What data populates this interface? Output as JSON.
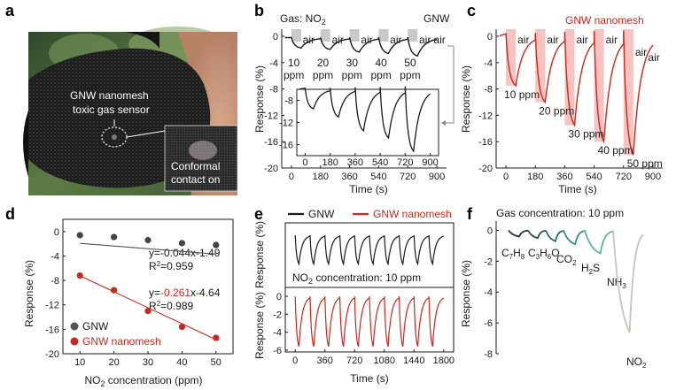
{
  "panels": {
    "a": {
      "label": "a",
      "sensor_line1": "GNW nanomesh",
      "sensor_line2": "toxic gas sensor",
      "inset_line1": "Conformal",
      "inset_line2": "contact on"
    },
    "b": {
      "label": "b"
    },
    "c": {
      "label": "c"
    },
    "d": {
      "label": "d"
    },
    "e": {
      "label": "e"
    },
    "f": {
      "label": "f"
    }
  },
  "colors": {
    "gnw": "#1a1a1a",
    "nanomesh": "#c8281e",
    "shade_gray": "#c9c9c9",
    "shade_pink": "#f6c3c0"
  },
  "chart_data": [
    {
      "id": "b",
      "type": "line",
      "title_left": "Gas: NO",
      "title_left_sub": "2",
      "title_right": "GNW",
      "xlabel": "Time (s)",
      "ylabel": "Response (%)",
      "xlim": [
        -60,
        960
      ],
      "ylim": [
        -20,
        0
      ],
      "xticks": [
        0,
        180,
        360,
        540,
        720,
        900
      ],
      "yticks": [
        0,
        -4,
        -8,
        -12,
        -16,
        -20
      ],
      "exposures": [
        [
          0,
          60
        ],
        [
          180,
          240
        ],
        [
          360,
          420
        ],
        [
          540,
          600
        ],
        [
          720,
          780
        ]
      ],
      "annotations": [
        {
          "label": "air",
          "x": 70
        },
        {
          "label": "10",
          "sub": "ppm",
          "x": 15
        },
        {
          "label": "air",
          "x": 250
        },
        {
          "label": "20",
          "sub": "ppm",
          "x": 195
        },
        {
          "label": "air",
          "x": 430
        },
        {
          "label": "30",
          "sub": "ppm",
          "x": 375
        },
        {
          "label": "air",
          "x": 610
        },
        {
          "label": "40",
          "sub": "ppm",
          "x": 555
        },
        {
          "label": "air",
          "x": 790
        },
        {
          "label": "50",
          "sub": "ppm",
          "x": 735
        },
        {
          "label": "air",
          "x": 880
        }
      ],
      "inset": {
        "xlim": [
          -60,
          960
        ],
        "ylim": [
          -18,
          -6
        ],
        "xticks": [
          0,
          180,
          360,
          540,
          720,
          900
        ],
        "yticks": [
          -8,
          -12,
          -16
        ],
        "drops": [
          -9.5,
          -11.0,
          -13.5,
          -14.8,
          -17.2
        ]
      }
    },
    {
      "id": "c",
      "type": "line",
      "title": "GNW nanomesh",
      "xlabel": "Time (s)",
      "ylabel": "Response (%)",
      "xlim": [
        -60,
        960
      ],
      "ylim": [
        -20,
        0
      ],
      "xticks": [
        0,
        180,
        360,
        540,
        720,
        900
      ],
      "yticks": [
        0,
        -4,
        -8,
        -12,
        -16,
        -20
      ],
      "exposures": [
        [
          0,
          60
        ],
        [
          180,
          240
        ],
        [
          360,
          420
        ],
        [
          540,
          600
        ],
        [
          720,
          780
        ]
      ],
      "drops": [
        -7.5,
        -10.0,
        -13.5,
        -16.0,
        -18.0
      ],
      "gas_labels": [
        "10 ppm",
        "20 ppm",
        "30 ppm",
        "40 ppm",
        "50 ppm"
      ],
      "air_label": "air"
    },
    {
      "id": "d",
      "type": "scatter",
      "xlabel": "NO",
      "xlabel_sub": "2",
      "xlabel_rest": " concentration (ppm)",
      "ylabel": "Response (%)",
      "xlim": [
        5,
        55
      ],
      "ylim": [
        -20,
        2
      ],
      "xticks": [
        10,
        20,
        30,
        40,
        50
      ],
      "yticks": [
        0,
        -4,
        -8,
        -12,
        -16,
        -20
      ],
      "series": [
        {
          "name": "GNW",
          "x": [
            10,
            20,
            30,
            40,
            50
          ],
          "y": [
            -0.6,
            -0.9,
            -1.4,
            -1.9,
            -2.2
          ],
          "err": [
            0.5,
            0.4,
            0.3,
            0.2,
            0.2
          ],
          "fit": {
            "slope": -0.044,
            "intercept": -1.49
          }
        },
        {
          "name": "GNW nanomesh",
          "x": [
            10,
            20,
            30,
            40,
            50
          ],
          "y": [
            -7.2,
            -9.6,
            -13.0,
            -15.6,
            -17.4
          ],
          "err": [
            0.2,
            0.2,
            0.3,
            0.4,
            0.4
          ],
          "fit": {
            "slope": -0.261,
            "intercept": -4.64
          }
        }
      ],
      "eq1": "y=-0.044x-1.49",
      "r2_1_prefix": "R",
      "r2_1_sup": "2",
      "r2_1_rest": "=0.959",
      "eq2_a": "y=",
      "eq2_b": "-0.261",
      "eq2_c": "x-4.64",
      "r2_2_prefix": "R",
      "r2_2_sup": "2",
      "r2_2_rest": "=0.989"
    },
    {
      "id": "e",
      "type": "line",
      "legend": [
        "GNW",
        "GNW nanomesh"
      ],
      "annotation_a": "NO",
      "annotation_sub": "2",
      "annotation_b": " concentration: 10 ppm",
      "xlabel": "Time (s)",
      "ylabel": "Response (%)",
      "xlim": [
        -120,
        1920
      ],
      "xticks": [
        0,
        360,
        720,
        1080,
        1440,
        1800
      ],
      "top": {
        "ylim": [
          -2.2,
          0.4
        ],
        "drop": -1.3,
        "cycles": 10
      },
      "bottom": {
        "ylim": [
          -6.2,
          0.4
        ],
        "yticks": [
          0,
          -2,
          -4,
          -6
        ],
        "drop": -5.6,
        "cycles": 10
      }
    },
    {
      "id": "f",
      "type": "line",
      "title": "Gas concentration: 10 ppm",
      "ylabel": "Response (%)",
      "ylim": [
        -8,
        0.6
      ],
      "yticks": [
        0,
        -2,
        -4,
        -6,
        -8
      ],
      "gases": [
        {
          "name": "C7H8",
          "drop": -0.4,
          "color": "#1f2f4c"
        },
        {
          "name": "C3H6O",
          "drop": -0.5,
          "color": "#24505a"
        },
        {
          "name": "CO2",
          "drop": -0.7,
          "color": "#2a6d70"
        },
        {
          "name": "H2S",
          "drop": -0.9,
          "color": "#3a8c8a"
        },
        {
          "name": "NH3",
          "drop": -1.5,
          "color": "#5fb1ad"
        },
        {
          "name": "NO2",
          "drop": -6.6,
          "color": "#c3c6ba"
        }
      ]
    }
  ]
}
